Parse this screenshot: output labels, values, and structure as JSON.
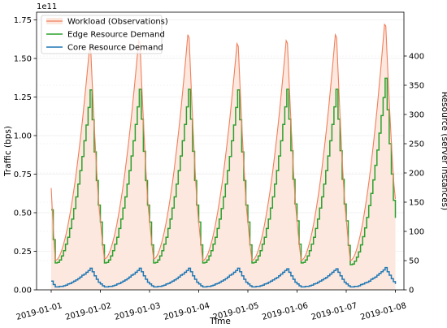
{
  "chart_data": {
    "type": "line",
    "xlabel": "Time",
    "ylabel_left": "Traffic (bps)",
    "ylabel_right": "Resource (server instances)",
    "left_axis_multiplier": "1e11",
    "x_ticks": [
      "2019-01-01",
      "2019-01-02",
      "2019-01-03",
      "2019-01-04",
      "2019-01-05",
      "2019-01-06",
      "2019-01-07",
      "2019-01-08"
    ],
    "ylim_left": [
      0,
      1.8
    ],
    "y_ticks_left": [
      "0.00",
      "0.25",
      "0.50",
      "0.75",
      "1.00",
      "1.25",
      "1.50",
      "1.75"
    ],
    "ylim_right": [
      0,
      475
    ],
    "y_ticks_right": [
      "0",
      "50",
      "100",
      "150",
      "200",
      "250",
      "300",
      "350",
      "400"
    ],
    "grid": true,
    "legend_position": "top-left",
    "series": [
      {
        "name": "Workload (Observations)",
        "axis": "left",
        "unit": "1e11 bps",
        "style": "line-with-fill",
        "color": "#f07f5a",
        "fill": "#fde8df",
        "days": [
          {
            "start": 0.66,
            "trough": 0.19,
            "peak": 1.63,
            "end": 0.45
          },
          {
            "start": 0.45,
            "trough": 0.2,
            "peak": 1.68,
            "end": 0.45
          },
          {
            "start": 0.45,
            "trough": 0.2,
            "peak": 1.72,
            "end": 0.44
          },
          {
            "start": 0.44,
            "trough": 0.19,
            "peak": 1.66,
            "end": 0.44
          },
          {
            "start": 0.44,
            "trough": 0.19,
            "peak": 1.68,
            "end": 0.45
          },
          {
            "start": 0.45,
            "trough": 0.19,
            "peak": 1.72,
            "end": 0.46
          },
          {
            "start": 0.46,
            "trough": 0.19,
            "peak": 1.79,
            "end": 0.59
          }
        ]
      },
      {
        "name": "Edge Resource Demand",
        "axis": "right",
        "unit": "server instances",
        "style": "step",
        "color": "#2ca02c",
        "days": [
          {
            "start": 137,
            "trough": 45,
            "peak": 345,
            "end": 116
          },
          {
            "start": 116,
            "trough": 45,
            "peak": 346,
            "end": 116
          },
          {
            "start": 116,
            "trough": 45,
            "peak": 346,
            "end": 116
          },
          {
            "start": 116,
            "trough": 45,
            "peak": 345,
            "end": 116
          },
          {
            "start": 116,
            "trough": 45,
            "peak": 346,
            "end": 118
          },
          {
            "start": 118,
            "trough": 45,
            "peak": 346,
            "end": 118
          },
          {
            "start": 118,
            "trough": 42,
            "peak": 365,
            "end": 123
          }
        ]
      },
      {
        "name": "Core Resource Demand",
        "axis": "right",
        "unit": "server instances",
        "style": "step",
        "color": "#1f77b4",
        "days": [
          {
            "start": 15,
            "trough": 5,
            "peak": 37,
            "end": 10
          },
          {
            "start": 10,
            "trough": 5,
            "peak": 37,
            "end": 10
          },
          {
            "start": 10,
            "trough": 5,
            "peak": 37,
            "end": 10
          },
          {
            "start": 10,
            "trough": 5,
            "peak": 37,
            "end": 10
          },
          {
            "start": 10,
            "trough": 5,
            "peak": 36,
            "end": 10
          },
          {
            "start": 10,
            "trough": 5,
            "peak": 36,
            "end": 10
          },
          {
            "start": 10,
            "trough": 5,
            "peak": 38,
            "end": 10
          }
        ]
      }
    ]
  }
}
